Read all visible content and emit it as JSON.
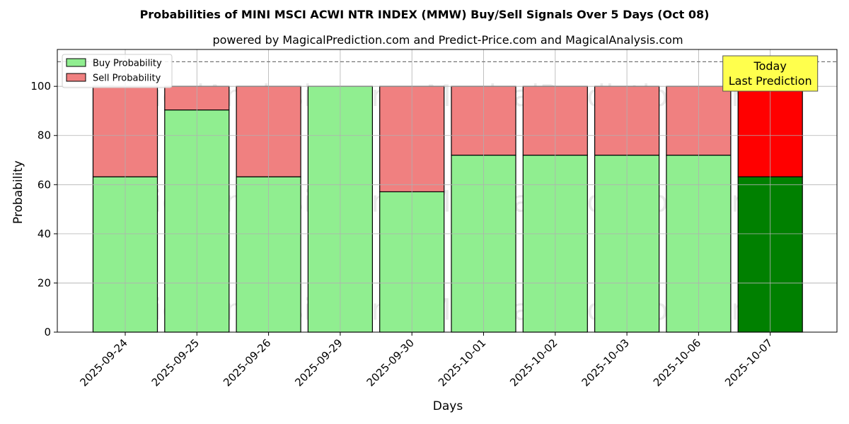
{
  "chart_data": {
    "type": "bar",
    "stacked": true,
    "title": "Probabilities of MINI MSCI ACWI NTR INDEX (MMW) Buy/Sell Signals Over 5 Days (Oct 08)",
    "subtitle": "powered by MagicalPrediction.com and Predict-Price.com and MagicalAnalysis.com",
    "xlabel": "Days",
    "ylabel": "Probability",
    "ylim": [
      0,
      115
    ],
    "yticks": [
      0,
      20,
      40,
      60,
      80,
      100
    ],
    "grid": true,
    "legend_position": "top-left",
    "reference_line": {
      "y": 110,
      "style": "dashed"
    },
    "categories": [
      "2025-09-24",
      "2025-09-25",
      "2025-09-26",
      "2025-09-29",
      "2025-09-30",
      "2025-10-01",
      "2025-10-02",
      "2025-10-03",
      "2025-10-06",
      "2025-10-07"
    ],
    "series": [
      {
        "name": "Buy Probability",
        "color": "#90ee90",
        "highlight_color": "#008000",
        "values": [
          63.2,
          90.4,
          63.2,
          100,
          57.1,
          72,
          72,
          72,
          72,
          63.2
        ]
      },
      {
        "name": "Sell Probability",
        "color": "#f08080",
        "highlight_color": "#ff0000",
        "values": [
          36.8,
          9.6,
          36.8,
          0,
          42.9,
          28,
          28,
          28,
          28,
          36.8
        ]
      }
    ],
    "highlight_index": 9,
    "annotation": {
      "line1": "Today",
      "line2": "Last Prediction",
      "color": "#ffff4d"
    },
    "watermarks": [
      "MagicalAnalysis.com",
      "MagicalPrediction.com"
    ]
  }
}
